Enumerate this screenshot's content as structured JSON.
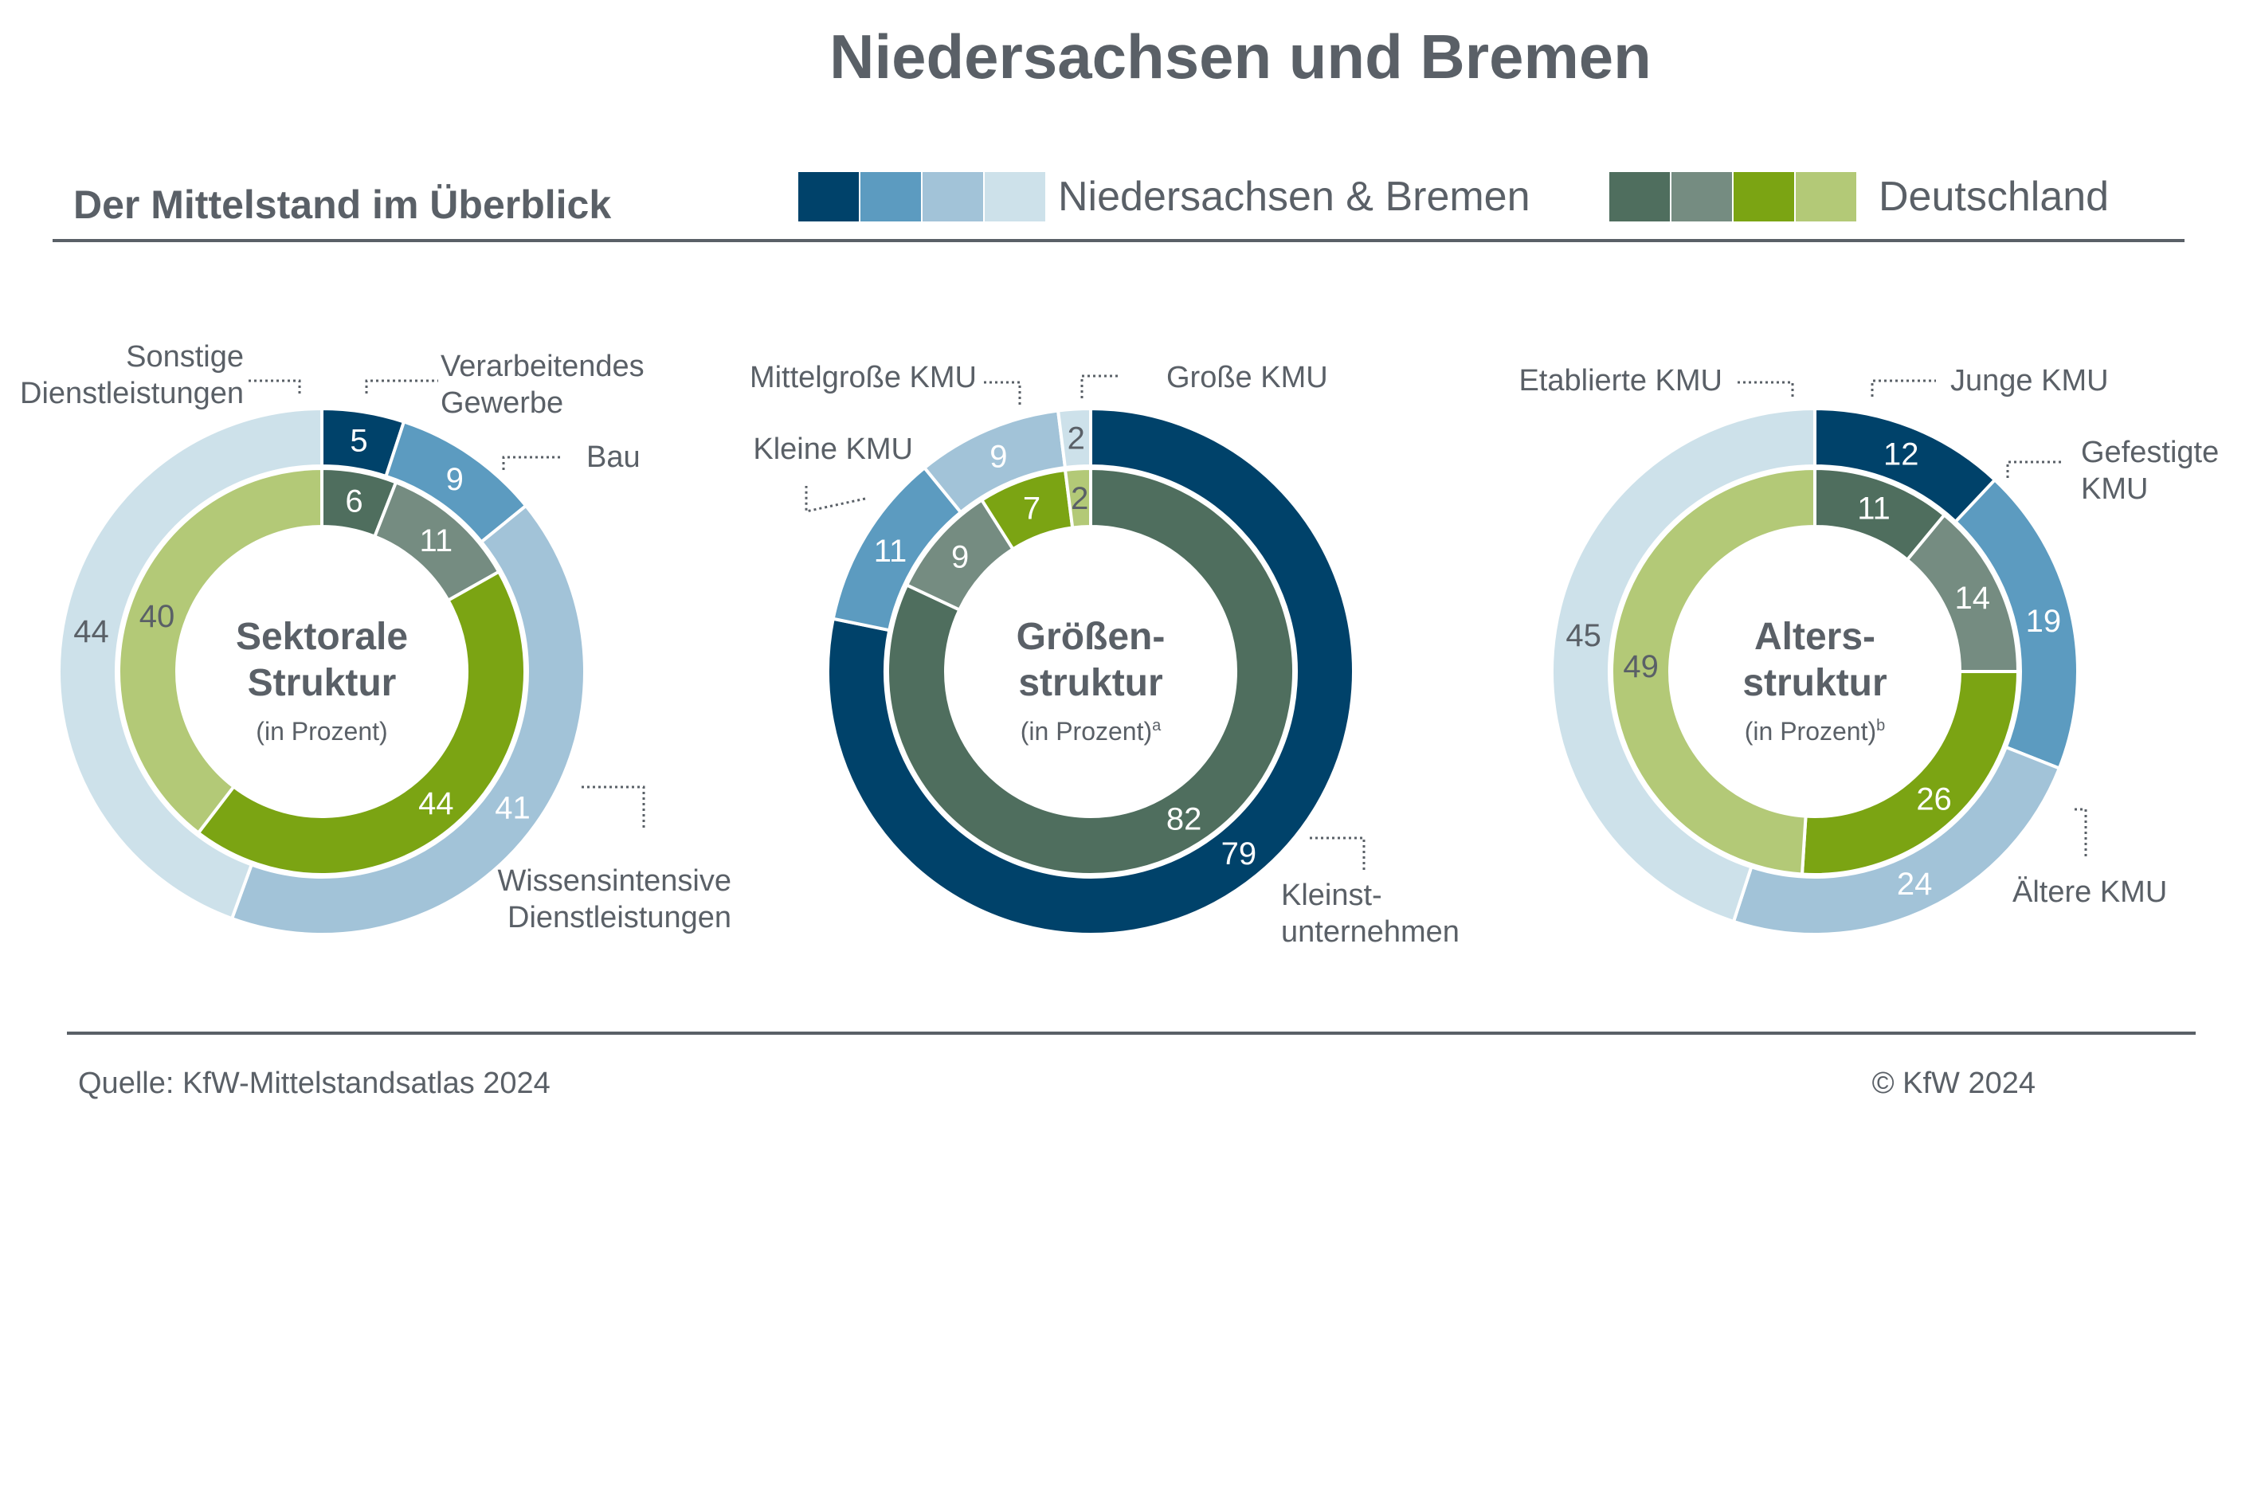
{
  "title": "Niedersachsen und Bremen",
  "subtitle": "Der Mittelstand im Überblick",
  "legend": {
    "region": {
      "label": "Niedersachsen & Bremen",
      "colors": [
        "#00426a",
        "#5c9bc0",
        "#a2c3d8",
        "#cde1ea"
      ]
    },
    "germany": {
      "label": "Deutschland",
      "colors": [
        "#4f6e5e",
        "#758c81",
        "#7ba413",
        "#b3c977"
      ]
    }
  },
  "footer": {
    "source": "Quelle: KfW-Mittelstandsatlas 2024",
    "copyright": "© KfW 2024"
  },
  "chart_data": [
    {
      "type": "pie",
      "variant": "double-donut",
      "center_title": [
        "Sektorale",
        "Struktur"
      ],
      "center_sub": "(in Prozent)",
      "center_sup": "",
      "categories": [
        "Verarbeitendes Gewerbe",
        "Bau",
        "Wissensintensive Dienstleistungen",
        "Sonstige Dienstleistungen"
      ],
      "category_labels": [
        [
          "Verarbeitendes",
          "Gewerbe"
        ],
        [
          "Bau"
        ],
        [
          "Wissensintensive",
          "Dienstleistungen"
        ],
        [
          "Sonstige",
          "Dienstleistungen"
        ]
      ],
      "series": [
        {
          "name": "Niedersachsen & Bremen",
          "ring": "outer",
          "values": [
            5,
            9,
            41,
            44
          ],
          "labels": [
            "5",
            "9",
            "41",
            "44"
          ]
        },
        {
          "name": "Deutschland",
          "ring": "inner",
          "values": [
            6,
            11,
            44,
            40
          ],
          "labels": [
            "6",
            "11",
            "44",
            "40"
          ]
        }
      ]
    },
    {
      "type": "pie",
      "variant": "double-donut",
      "center_title": [
        "Größen-",
        "struktur"
      ],
      "center_sub": "(in Prozent)",
      "center_sup": "a",
      "categories": [
        "Kleinstunternehmen",
        "Kleine KMU",
        "Mittelgroße KMU",
        "Große KMU"
      ],
      "category_labels": [
        [
          "Kleinst-",
          "unternehmen"
        ],
        [
          "Kleine KMU"
        ],
        [
          "Mittelgroße KMU"
        ],
        [
          "Große KMU"
        ]
      ],
      "series": [
        {
          "name": "Niedersachsen & Bremen",
          "ring": "outer",
          "values": [
            79,
            11,
            9,
            2
          ],
          "labels": [
            "79",
            "11",
            "9",
            "2"
          ]
        },
        {
          "name": "Deutschland",
          "ring": "inner",
          "values": [
            82,
            9,
            7,
            2
          ],
          "labels": [
            "82",
            "9",
            "7",
            "2"
          ]
        }
      ]
    },
    {
      "type": "pie",
      "variant": "double-donut",
      "center_title": [
        "Alters-",
        "struktur"
      ],
      "center_sub": "(in Prozent)",
      "center_sup": "b",
      "categories": [
        "Junge KMU",
        "Gefestigte KMU",
        "Ältere KMU",
        "Etablierte KMU"
      ],
      "category_labels": [
        [
          "Junge KMU"
        ],
        [
          "Gefestigte",
          "KMU"
        ],
        [
          "Ältere KMU"
        ],
        [
          "Etablierte KMU"
        ]
      ],
      "series": [
        {
          "name": "Niedersachsen & Bremen",
          "ring": "outer",
          "values": [
            12,
            19,
            24,
            45
          ],
          "labels": [
            "12",
            "19",
            "24",
            "45"
          ]
        },
        {
          "name": "Deutschland",
          "ring": "inner",
          "values": [
            11,
            14,
            26,
            49
          ],
          "labels": [
            "11",
            "14",
            "26",
            "49"
          ]
        }
      ]
    }
  ]
}
